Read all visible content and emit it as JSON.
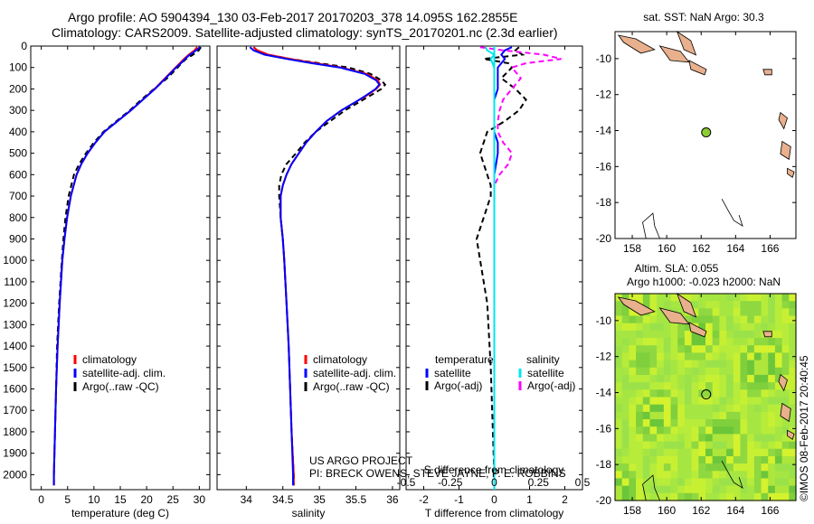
{
  "header": {
    "line1": "Argo profile: AO 5904394_130 03-Feb-2017 20170203_378 14.095S 162.2855E",
    "line2": "Climatology: CARS2009. Satellite-adjusted climatology: synTS_20170201.nc (2.3d earlier)"
  },
  "colors": {
    "climatology": "#ff0000",
    "satellite": "#0000ff",
    "argo": "#000000",
    "salinity_sat": "#00e5ee",
    "salinity_argo": "#ff00ff",
    "land": "#e8b08c",
    "float_marker": "#8ccd32"
  },
  "credit": {
    "line1": "US ARGO PROJECT",
    "line2": "PI: BRECK OWENS, STEVE JAYNE, P. E. ROBBINS"
  },
  "watermark": "©IMOS 08-Feb-2017 20:40:45",
  "chart_data": [
    {
      "type": "line",
      "name": "temperature",
      "xlabel": "temperature (deg C)",
      "ylabel": "",
      "xlim": [
        -2,
        32
      ],
      "ylim": [
        2070,
        0
      ],
      "xticks": [
        0,
        5,
        10,
        15,
        20,
        25,
        30
      ],
      "yticks": [
        0,
        100,
        200,
        300,
        400,
        500,
        600,
        700,
        800,
        900,
        1000,
        1100,
        1200,
        1300,
        1400,
        1500,
        1600,
        1700,
        1800,
        1900,
        2000
      ],
      "legend": [
        "climatology",
        "satellite-adj. clim.",
        "Argo(..raw -QC)"
      ],
      "depth": [
        5,
        20,
        40,
        60,
        80,
        100,
        150,
        200,
        250,
        300,
        350,
        400,
        450,
        500,
        550,
        600,
        700,
        800,
        900,
        1000,
        1200,
        1400,
        1600,
        1800,
        2000,
        2050
      ],
      "series": [
        {
          "name": "climatology",
          "values": [
            29.6,
            29.1,
            28.0,
            27.1,
            26.3,
            25.5,
            23.5,
            21.5,
            19.3,
            17.0,
            14.5,
            12.0,
            10.3,
            8.8,
            7.6,
            6.7,
            5.6,
            4.9,
            4.4,
            4.0,
            3.5,
            3.1,
            2.8,
            2.6,
            2.4,
            2.4
          ]
        },
        {
          "name": "satellite-adj. clim.",
          "values": [
            30.1,
            29.4,
            28.2,
            27.3,
            26.5,
            25.6,
            23.6,
            21.6,
            19.3,
            17.0,
            14.5,
            12.0,
            10.3,
            8.8,
            7.6,
            6.7,
            5.6,
            4.9,
            4.4,
            4.0,
            3.5,
            3.1,
            2.8,
            2.6,
            2.4,
            2.4
          ]
        },
        {
          "name": "Argo(..raw -QC)",
          "values": [
            30.3,
            29.9,
            28.8,
            27.5,
            26.6,
            25.9,
            23.9,
            21.4,
            19.0,
            16.8,
            14.3,
            11.8,
            10.0,
            8.5,
            7.2,
            6.2,
            5.2,
            4.6,
            4.2,
            3.9,
            3.4,
            3.0,
            2.8,
            2.6,
            2.4,
            2.4
          ]
        }
      ]
    },
    {
      "type": "line",
      "name": "salinity",
      "xlabel": "salinity",
      "ylabel": "",
      "xlim": [
        33.6,
        36.1
      ],
      "ylim": [
        2070,
        0
      ],
      "xticks": [
        34,
        34.5,
        35,
        35.5,
        36
      ],
      "legend": [
        "climatology",
        "satellite-adj. clim.",
        "Argo(..raw -QC)"
      ],
      "depth": [
        5,
        20,
        40,
        60,
        80,
        100,
        130,
        160,
        180,
        200,
        230,
        260,
        300,
        350,
        400,
        450,
        500,
        550,
        600,
        650,
        700,
        800,
        900,
        1000,
        1200,
        1400,
        1600,
        1800,
        2000,
        2050
      ],
      "series": [
        {
          "name": "climatology",
          "values": [
            34.1,
            34.15,
            34.3,
            34.6,
            34.95,
            35.3,
            35.65,
            35.8,
            35.83,
            35.78,
            35.65,
            35.5,
            35.3,
            35.1,
            34.95,
            34.82,
            34.72,
            34.62,
            34.55,
            34.5,
            34.47,
            34.47,
            34.5,
            34.52,
            34.55,
            34.58,
            34.6,
            34.62,
            34.65,
            34.65
          ]
        },
        {
          "name": "satellite-adj. clim.",
          "values": [
            34.05,
            34.1,
            34.25,
            34.55,
            34.9,
            35.28,
            35.62,
            35.78,
            35.82,
            35.77,
            35.64,
            35.5,
            35.3,
            35.1,
            34.95,
            34.82,
            34.72,
            34.62,
            34.55,
            34.5,
            34.47,
            34.47,
            34.5,
            34.52,
            34.55,
            34.58,
            34.6,
            34.62,
            34.64,
            34.64
          ]
        },
        {
          "name": "Argo(..raw -QC)",
          "values": [
            34.1,
            34.15,
            34.3,
            34.6,
            35.0,
            35.4,
            35.7,
            35.85,
            35.9,
            35.85,
            35.7,
            35.55,
            35.35,
            35.15,
            34.95,
            34.8,
            34.68,
            34.55,
            34.48,
            34.45,
            34.45,
            34.47,
            34.5,
            34.52,
            34.55,
            34.58,
            34.6,
            34.62,
            34.65,
            34.65
          ]
        }
      ]
    },
    {
      "type": "line",
      "name": "differences",
      "xlabel": "T difference from climatology",
      "xlabel_top": "S difference from climatology",
      "xlim": [
        -2.5,
        2.5
      ],
      "ylim": [
        2070,
        0
      ],
      "xticks": [
        -2,
        -1,
        0,
        1,
        2
      ],
      "top_ticks": [
        -0.5,
        -0.25,
        0,
        0.25,
        0.5
      ],
      "top_tick_labels": [
        "-0.5",
        "-0.25",
        "0",
        "0.25",
        "0.5"
      ],
      "legend_headers": [
        "temperature",
        "salinity"
      ],
      "legend": [
        "satellite",
        "Argo(-adj)",
        "satellite",
        "Argo(-adj)"
      ],
      "depth": [
        5,
        20,
        40,
        60,
        80,
        100,
        150,
        200,
        250,
        300,
        350,
        400,
        450,
        500,
        550,
        600,
        650,
        700,
        800,
        900,
        1000,
        1200,
        1500,
        2000,
        2050
      ],
      "series": [
        {
          "name": "T satellite",
          "values": [
            0.5,
            0.3,
            0.2,
            0.3,
            0.2,
            0.1,
            0.1,
            0.1,
            0.0,
            0.0,
            0.0,
            0.0,
            0.1,
            0.1,
            0.05,
            0.0,
            0.0,
            0.0,
            0.0,
            0.0,
            0.0,
            0.0,
            0.0,
            0.0,
            0.0
          ]
        },
        {
          "name": "T Argo(-adj)",
          "values": [
            0.7,
            0.6,
            0.8,
            -0.3,
            0.4,
            0.5,
            0.2,
            0.6,
            0.9,
            0.7,
            0.3,
            -0.2,
            -0.3,
            -0.4,
            -0.3,
            -0.2,
            -0.1,
            -0.1,
            -0.3,
            -0.5,
            -0.4,
            -0.2,
            -0.1,
            0.0,
            0.0
          ]
        },
        {
          "name": "S satellite",
          "values": [
            -0.05,
            -0.04,
            0.0,
            -0.02,
            -0.01,
            0.0,
            0.0,
            0.0,
            0.0,
            0.0,
            0.0,
            0.0,
            0.0,
            0.0,
            0.0,
            0.0,
            0.0,
            0.0,
            0.0,
            0.0,
            0.0,
            0.0,
            0.0,
            0.0,
            0.0
          ]
        },
        {
          "name": "S Argo(-adj)",
          "values": [
            -0.08,
            0.05,
            0.28,
            0.38,
            0.18,
            0.1,
            0.15,
            0.1,
            0.05,
            0.03,
            0.02,
            0.02,
            0.05,
            0.1,
            0.08,
            0.03,
            0.0,
            0.0,
            0.0,
            0.0,
            0.0,
            0.0,
            0.0,
            0.0,
            0.0
          ]
        }
      ]
    },
    {
      "type": "map",
      "name": "sst_map",
      "title": "sat. SST: NaN Argo: 30.3",
      "xlim": [
        157,
        167.5
      ],
      "ylim": [
        -20,
        -8.5
      ],
      "xticks": [
        158,
        160,
        162,
        164,
        166
      ],
      "yticks": [
        -10,
        -12,
        -14,
        -16,
        -18,
        -20
      ],
      "float_position": {
        "lon": 162.29,
        "lat": -14.1
      }
    },
    {
      "type": "map",
      "name": "sla_map",
      "title_line1": "Altim. SLA: 0.055",
      "title_line2": "Argo h1000: -0.023 h2000: NaN",
      "xlim": [
        157,
        167.5
      ],
      "ylim": [
        -20,
        -8.5
      ],
      "xticks": [
        158,
        160,
        162,
        164,
        166
      ],
      "yticks": [
        -10,
        -12,
        -14,
        -16,
        -18,
        -20
      ],
      "float_position": {
        "lon": 162.29,
        "lat": -14.1
      }
    }
  ]
}
